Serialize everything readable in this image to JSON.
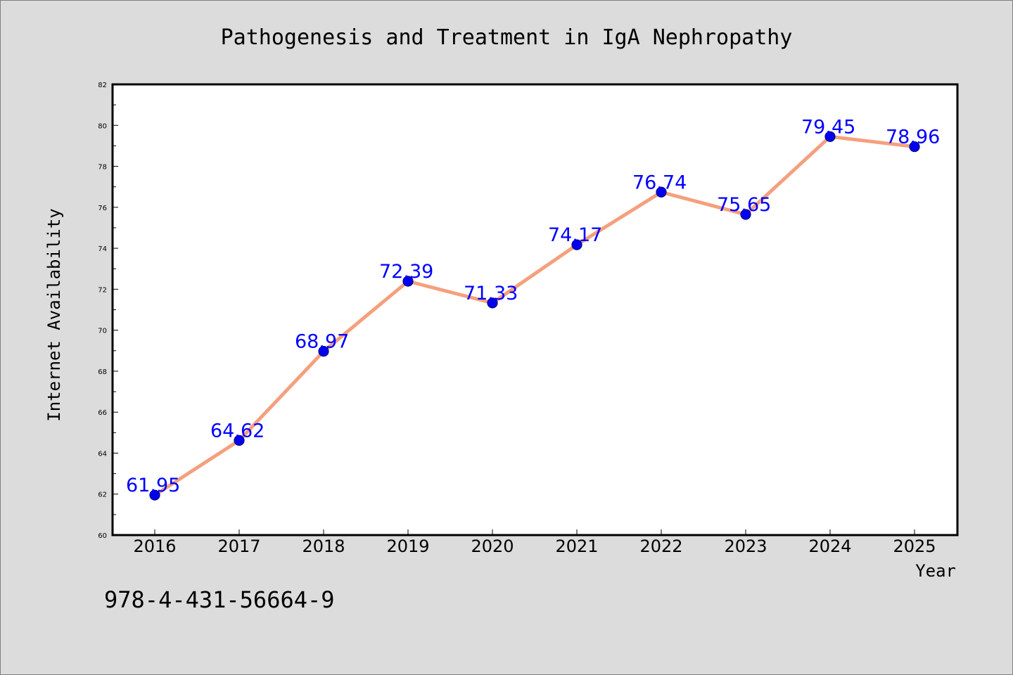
{
  "chart_data": {
    "type": "line",
    "title": "Pathogenesis and Treatment in IgA Nephropathy",
    "xlabel": "Year",
    "ylabel": "Internet Availability",
    "categories": [
      "2016",
      "2017",
      "2018",
      "2019",
      "2020",
      "2021",
      "2022",
      "2023",
      "2024",
      "2025"
    ],
    "values": [
      61.95,
      64.62,
      68.97,
      72.39,
      71.33,
      74.17,
      76.74,
      75.65,
      79.45,
      78.96
    ],
    "data_labels": [
      "61.95",
      "64.62",
      "68.97",
      "72.39",
      "71.33",
      "74.17",
      "76.74",
      "75.65",
      "79.45",
      "78.96"
    ],
    "ylim": [
      60,
      82
    ],
    "y_ticks": [
      "60",
      "62",
      "64",
      "66",
      "68",
      "70",
      "72",
      "74",
      "76",
      "78",
      "80",
      "82"
    ],
    "grid": false,
    "legend": "none",
    "colors": {
      "line": "#f4a07e",
      "marker": "#0000ee",
      "marker_edge": "#00008b",
      "data_label": "#0000ff",
      "plot_background": "#ffffff",
      "figure_background": "#dcdcdc"
    }
  },
  "annotation": {
    "text": "978-4-431-56664-9"
  }
}
